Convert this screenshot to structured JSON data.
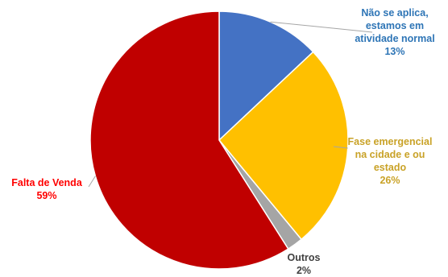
{
  "chart_data": {
    "type": "pie",
    "title": "",
    "slices": [
      {
        "label_lines": [
          "Não se aplica,",
          "estamos em",
          "atividade normal"
        ],
        "value": 13,
        "value_label": "13%",
        "color": "#4472C4",
        "label_color": "#2E75B6"
      },
      {
        "label_lines": [
          "Fase emergencial",
          "na cidade e ou",
          "estado"
        ],
        "value": 26,
        "value_label": "26%",
        "color": "#FFC000",
        "label_color": "#C9A227"
      },
      {
        "label_lines": [
          "Outros"
        ],
        "value": 2,
        "value_label": "2%",
        "color": "#A5A5A5",
        "label_color": "#404040"
      },
      {
        "label_lines": [
          "Falta de Venda"
        ],
        "value": 59,
        "value_label": "59%",
        "color": "#C00000",
        "label_color": "#FF0000"
      }
    ]
  }
}
